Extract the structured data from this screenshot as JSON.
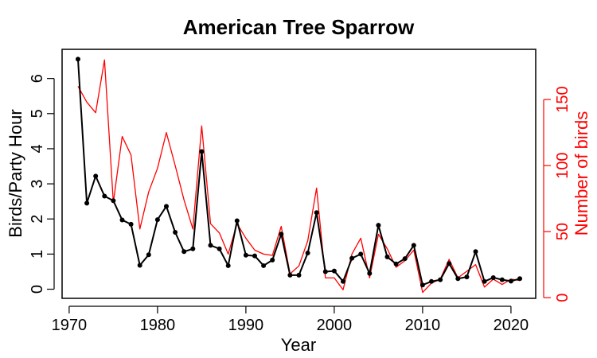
{
  "chart_data": {
    "type": "line",
    "title": "American Tree Sparrow",
    "xlabel": "Year",
    "ylabel": "Birds/Party Hour",
    "ylabel_right": "Number of birds",
    "xlim": [
      1969.2,
      2022.8
    ],
    "ylim": [
      -0.26,
      6.83
    ],
    "ylim_right": [
      -0.5,
      188
    ],
    "x_ticks": [
      1970,
      1980,
      1990,
      2000,
      2010,
      2020
    ],
    "y_ticks": [
      0,
      1,
      2,
      3,
      4,
      5,
      6
    ],
    "y_ticks_right": [
      0,
      50,
      100,
      150
    ],
    "x": [
      1971,
      1972,
      1973,
      1974,
      1975,
      1976,
      1977,
      1978,
      1979,
      1980,
      1981,
      1982,
      1983,
      1984,
      1985,
      1986,
      1987,
      1988,
      1989,
      1990,
      1991,
      1992,
      1993,
      1994,
      1995,
      1996,
      1997,
      1998,
      1999,
      2000,
      2001,
      2002,
      2003,
      2004,
      2005,
      2006,
      2007,
      2008,
      2009,
      2010,
      2011,
      2012,
      2013,
      2014,
      2015,
      2016,
      2017,
      2018,
      2019,
      2020,
      2021
    ],
    "series": [
      {
        "name": "Birds/Party Hour",
        "axis": "left",
        "color": "#000000",
        "markers": true,
        "values": [
          6.55,
          2.45,
          3.22,
          2.65,
          2.52,
          1.97,
          1.85,
          0.68,
          0.98,
          1.98,
          2.36,
          1.62,
          1.07,
          1.15,
          3.92,
          1.25,
          1.15,
          0.67,
          1.95,
          0.97,
          0.95,
          0.67,
          0.83,
          1.57,
          0.4,
          0.4,
          1.03,
          2.18,
          0.5,
          0.52,
          0.22,
          0.88,
          1.0,
          0.45,
          1.82,
          0.92,
          0.72,
          0.87,
          1.25,
          0.12,
          0.22,
          0.27,
          0.73,
          0.3,
          0.35,
          1.07,
          0.22,
          0.33,
          0.27,
          0.23,
          0.3
        ]
      },
      {
        "name": "Number of birds",
        "axis": "right",
        "color": "#ff0000",
        "markers": false,
        "values": [
          160,
          148,
          140,
          180,
          72,
          122,
          108,
          52,
          80,
          98,
          125,
          100,
          74,
          52,
          130,
          56,
          49,
          33,
          56,
          45,
          36,
          33,
          32,
          54,
          18,
          24,
          43,
          83,
          15,
          15,
          6,
          33,
          45,
          15,
          48,
          37,
          23,
          28,
          36,
          4,
          11,
          14,
          29,
          15,
          20,
          25,
          8,
          14,
          10,
          14,
          13
        ]
      }
    ]
  }
}
